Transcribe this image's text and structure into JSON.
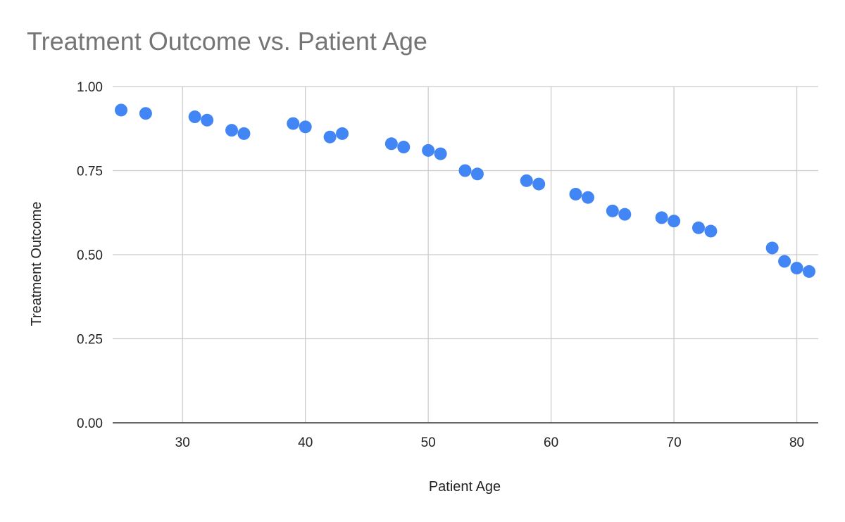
{
  "chart_data": {
    "type": "scatter",
    "title": "Treatment Outcome vs. Patient Age",
    "xlabel": "Patient Age",
    "ylabel": "Treatment Outcome",
    "xlim": [
      25,
      81
    ],
    "ylim": [
      0,
      1
    ],
    "x_ticks": [
      "30",
      "40",
      "50",
      "60",
      "70",
      "80"
    ],
    "y_ticks": [
      "0.00",
      "0.25",
      "0.50",
      "0.75",
      "1.00"
    ],
    "grid": true,
    "legend": "none",
    "point_color": "#4285f4",
    "points": [
      {
        "x": 25,
        "y": 0.93
      },
      {
        "x": 27,
        "y": 0.92
      },
      {
        "x": 31,
        "y": 0.91
      },
      {
        "x": 32,
        "y": 0.9
      },
      {
        "x": 34,
        "y": 0.87
      },
      {
        "x": 35,
        "y": 0.86
      },
      {
        "x": 39,
        "y": 0.89
      },
      {
        "x": 40,
        "y": 0.88
      },
      {
        "x": 42,
        "y": 0.85
      },
      {
        "x": 43,
        "y": 0.86
      },
      {
        "x": 47,
        "y": 0.83
      },
      {
        "x": 48,
        "y": 0.82
      },
      {
        "x": 50,
        "y": 0.81
      },
      {
        "x": 51,
        "y": 0.8
      },
      {
        "x": 53,
        "y": 0.75
      },
      {
        "x": 54,
        "y": 0.74
      },
      {
        "x": 58,
        "y": 0.72
      },
      {
        "x": 59,
        "y": 0.71
      },
      {
        "x": 62,
        "y": 0.68
      },
      {
        "x": 63,
        "y": 0.67
      },
      {
        "x": 65,
        "y": 0.63
      },
      {
        "x": 66,
        "y": 0.62
      },
      {
        "x": 69,
        "y": 0.61
      },
      {
        "x": 70,
        "y": 0.6
      },
      {
        "x": 72,
        "y": 0.58
      },
      {
        "x": 73,
        "y": 0.57
      },
      {
        "x": 78,
        "y": 0.52
      },
      {
        "x": 79,
        "y": 0.48
      },
      {
        "x": 80,
        "y": 0.46
      },
      {
        "x": 81,
        "y": 0.45
      }
    ]
  }
}
